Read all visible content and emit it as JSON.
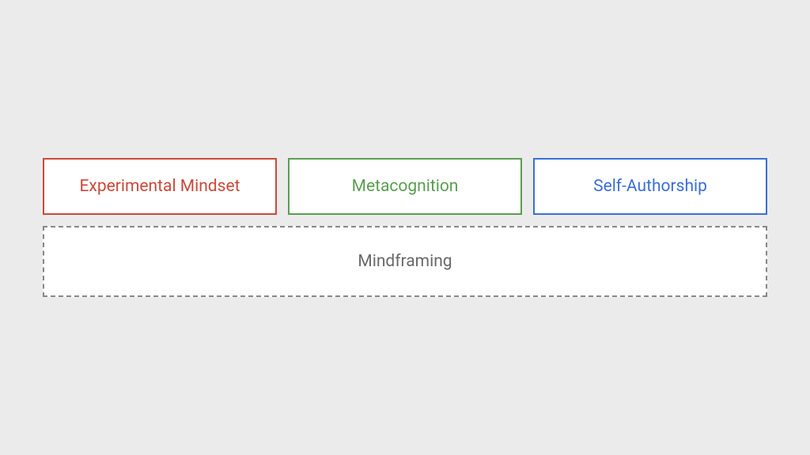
{
  "background_color": "#ebebeb",
  "box_background": "#ffffff",
  "top_boxes": {
    "height": 72,
    "font_size": 21,
    "items": [
      {
        "label": "Experimental Mindset",
        "border_color": "#c94a3b",
        "text_color": "#c94a3b"
      },
      {
        "label": "Metacognition",
        "border_color": "#5a9e50",
        "text_color": "#5a9e50"
      },
      {
        "label": "Self-Authorship",
        "border_color": "#3b6fd6",
        "text_color": "#3b6fd6"
      }
    ]
  },
  "bottom_box": {
    "label": "Mindframing",
    "height": 90,
    "font_size": 21,
    "border_color": "#888888",
    "text_color": "#696969",
    "border_width": 2,
    "dash_length": 8
  }
}
